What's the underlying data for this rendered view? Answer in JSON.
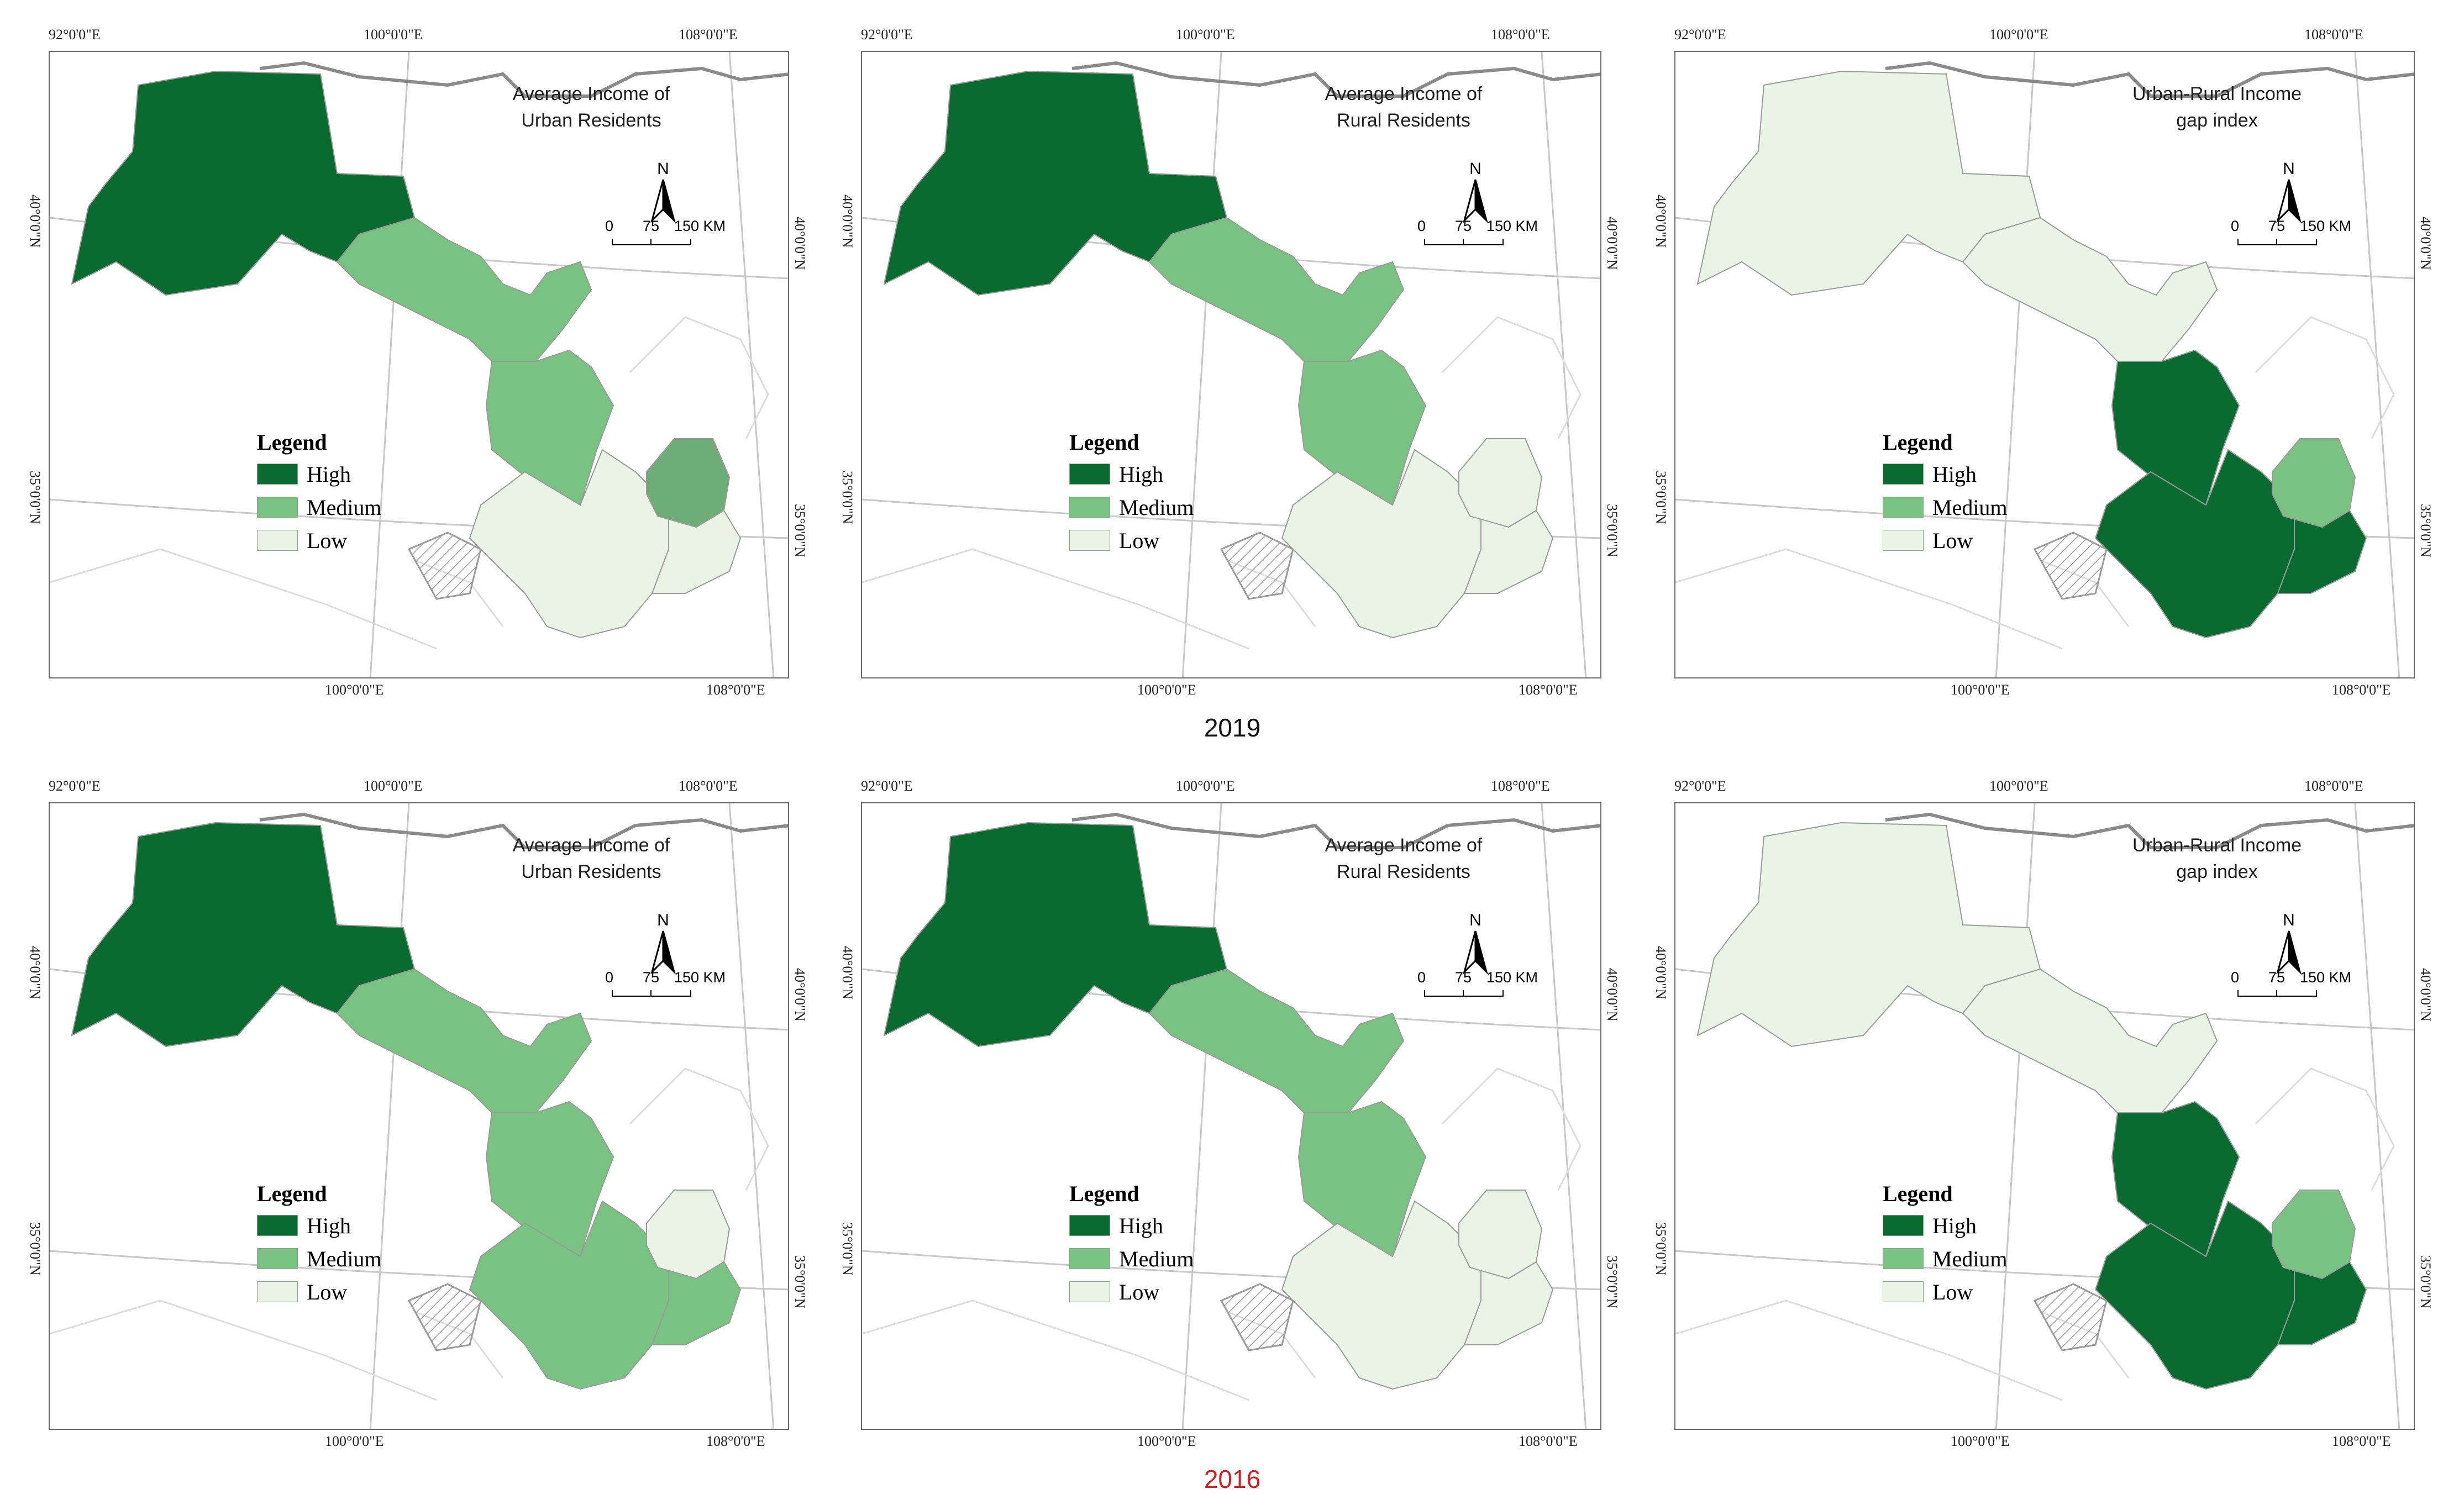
{
  "colors": {
    "high": "#0a6b30",
    "medium": "#78c381",
    "medium_2019_urban": "#6eac78",
    "low": "#eaf4e6",
    "border": "#9a9a9a",
    "frame": "#6a6a6a",
    "year_2016": "#d42020"
  },
  "coords": {
    "top": [
      "92°0'0\"E",
      "100°0'0\"E",
      "108°0'0\"E"
    ],
    "bottom": [
      "100°0'0\"E",
      "108°0'0\"E"
    ],
    "left": [
      "40°0'0\"N",
      "35°0'0\"N"
    ],
    "right": [
      "40°0'0\"N",
      "35°0'0\"N"
    ]
  },
  "north_label": "N",
  "scale": {
    "labels": [
      "0",
      "75",
      "150 KM"
    ]
  },
  "legend": {
    "title": "Legend",
    "items": [
      "High",
      "Medium",
      "Low"
    ]
  },
  "panels": [
    {
      "title": [
        "Average Income of",
        "Urban Residents"
      ],
      "year": "2019",
      "fills": {
        "west": "high",
        "corridor": "medium",
        "center": "medium",
        "ning": "medium_dot",
        "south": "low",
        "east": "low"
      }
    },
    {
      "title": [
        "Average Income of",
        "Rural Residents"
      ],
      "year": "2019",
      "fills": {
        "west": "high",
        "corridor": "medium",
        "center": "medium",
        "ning": "low",
        "south": "low",
        "east": "low"
      }
    },
    {
      "title": [
        "Urban-Rural Income",
        "gap index"
      ],
      "year": "2019",
      "fills": {
        "west": "low",
        "corridor": "low",
        "center": "high",
        "ning": "medium",
        "south": "high",
        "east": "high"
      }
    },
    {
      "title": [
        "Average Income of",
        "Urban Residents"
      ],
      "year": "2016",
      "fills": {
        "west": "high",
        "corridor": "medium",
        "center": "medium",
        "ning": "low",
        "south": "medium",
        "east": "medium"
      }
    },
    {
      "title": [
        "Average Income of",
        "Rural Residents"
      ],
      "year": "2016",
      "fills": {
        "west": "high",
        "corridor": "medium",
        "center": "medium",
        "ning": "low",
        "south": "low",
        "east": "low"
      }
    },
    {
      "title": [
        "Urban-Rural Income",
        "gap index"
      ],
      "year": "2016",
      "fills": {
        "west": "low",
        "corridor": "low",
        "center": "high",
        "ning": "medium",
        "south": "high",
        "east": "high"
      }
    }
  ],
  "year_labels": [
    "2019",
    "2016"
  ]
}
